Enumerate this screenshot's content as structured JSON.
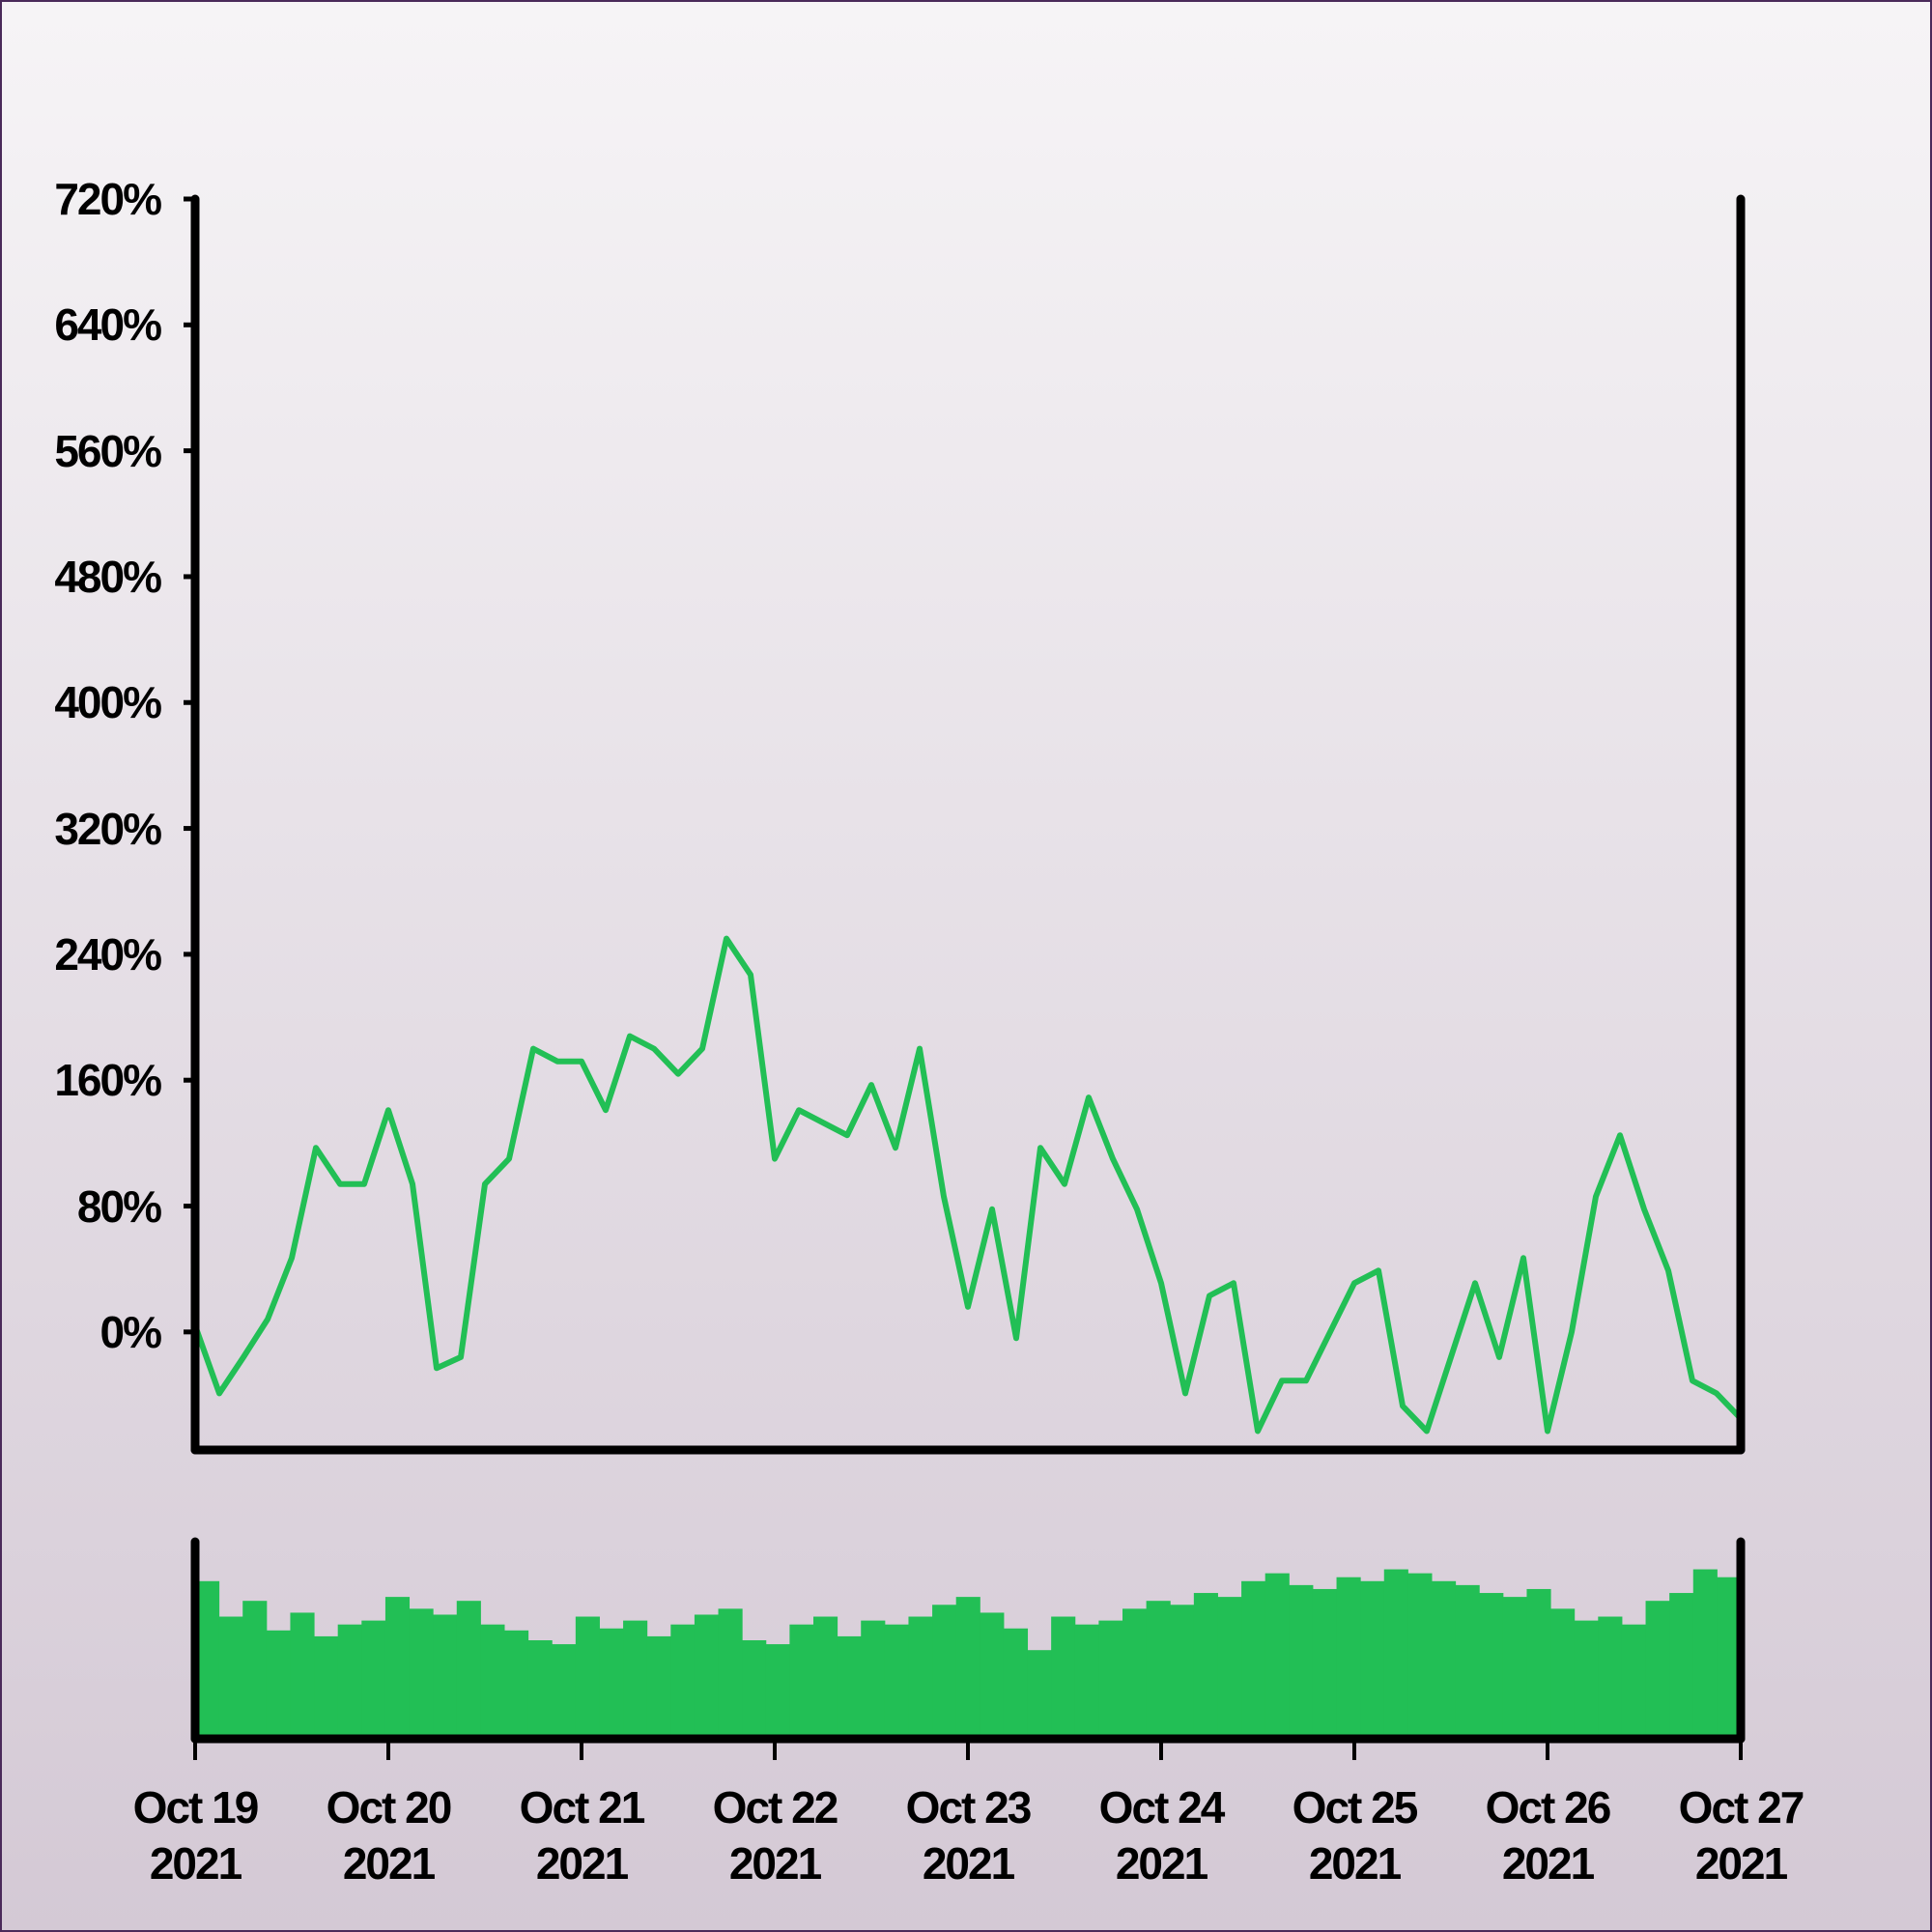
{
  "chart_data": {
    "type": "line",
    "color": "#22bf55",
    "values": [
      4,
      -39,
      -16,
      8,
      47,
      117,
      94,
      94,
      141,
      94,
      -23,
      -16,
      94,
      110,
      180,
      172,
      172,
      141,
      188,
      180,
      164,
      180,
      250,
      227,
      110,
      141,
      133,
      125,
      157,
      117,
      180,
      86,
      16,
      78,
      -4,
      117,
      94,
      149,
      110,
      78,
      31,
      -39,
      23,
      31,
      -63,
      -31,
      -31,
      0,
      31,
      39,
      -47,
      -63,
      -16,
      31,
      -16,
      47,
      -63,
      0,
      86,
      125,
      78,
      39,
      -31,
      -39,
      -55
    ],
    "volume": {
      "color": "#22bf55",
      "values": [
        80,
        62,
        70,
        55,
        64,
        52,
        58,
        60,
        72,
        66,
        63,
        70,
        58,
        55,
        50,
        48,
        62,
        56,
        60,
        52,
        58,
        63,
        66,
        50,
        48,
        58,
        62,
        52,
        60,
        58,
        62,
        68,
        72,
        64,
        56,
        45,
        62,
        58,
        60,
        66,
        70,
        68,
        74,
        72,
        80,
        84,
        78,
        76,
        82,
        80,
        86,
        84,
        80,
        78,
        74,
        72,
        76,
        66,
        60,
        62,
        58,
        70,
        74,
        86,
        82
      ]
    },
    "xlim": [
      "2021-10-19",
      "2021-10-27"
    ],
    "xticks": [
      {
        "value": "2021-10-19",
        "label": "Oct 19\n2021"
      },
      {
        "value": "2021-10-20",
        "label": "Oct 20\n2021"
      },
      {
        "value": "2021-10-21",
        "label": "Oct 21\n2021"
      },
      {
        "value": "2021-10-22",
        "label": "Oct 22\n2021"
      },
      {
        "value": "2021-10-23",
        "label": "Oct 23\n2021"
      },
      {
        "value": "2021-10-24",
        "label": "Oct 24\n2021"
      },
      {
        "value": "2021-10-25",
        "label": "Oct 25\n2021"
      },
      {
        "value": "2021-10-26",
        "label": "Oct 26\n2021"
      },
      {
        "value": "2021-10-27",
        "label": "Oct 27\n2021"
      }
    ],
    "ylim": [
      -75,
      720
    ],
    "yticks": [
      {
        "value": 0,
        "label": "0%"
      },
      {
        "value": 80,
        "label": "80%"
      },
      {
        "value": 160,
        "label": "160%"
      },
      {
        "value": 240,
        "label": "240%"
      },
      {
        "value": 320,
        "label": "320%"
      },
      {
        "value": 400,
        "label": "400%"
      },
      {
        "value": 480,
        "label": "480%"
      },
      {
        "value": 560,
        "label": "560%"
      },
      {
        "value": 640,
        "label": "640%"
      },
      {
        "value": 720,
        "label": "720%"
      }
    ]
  }
}
